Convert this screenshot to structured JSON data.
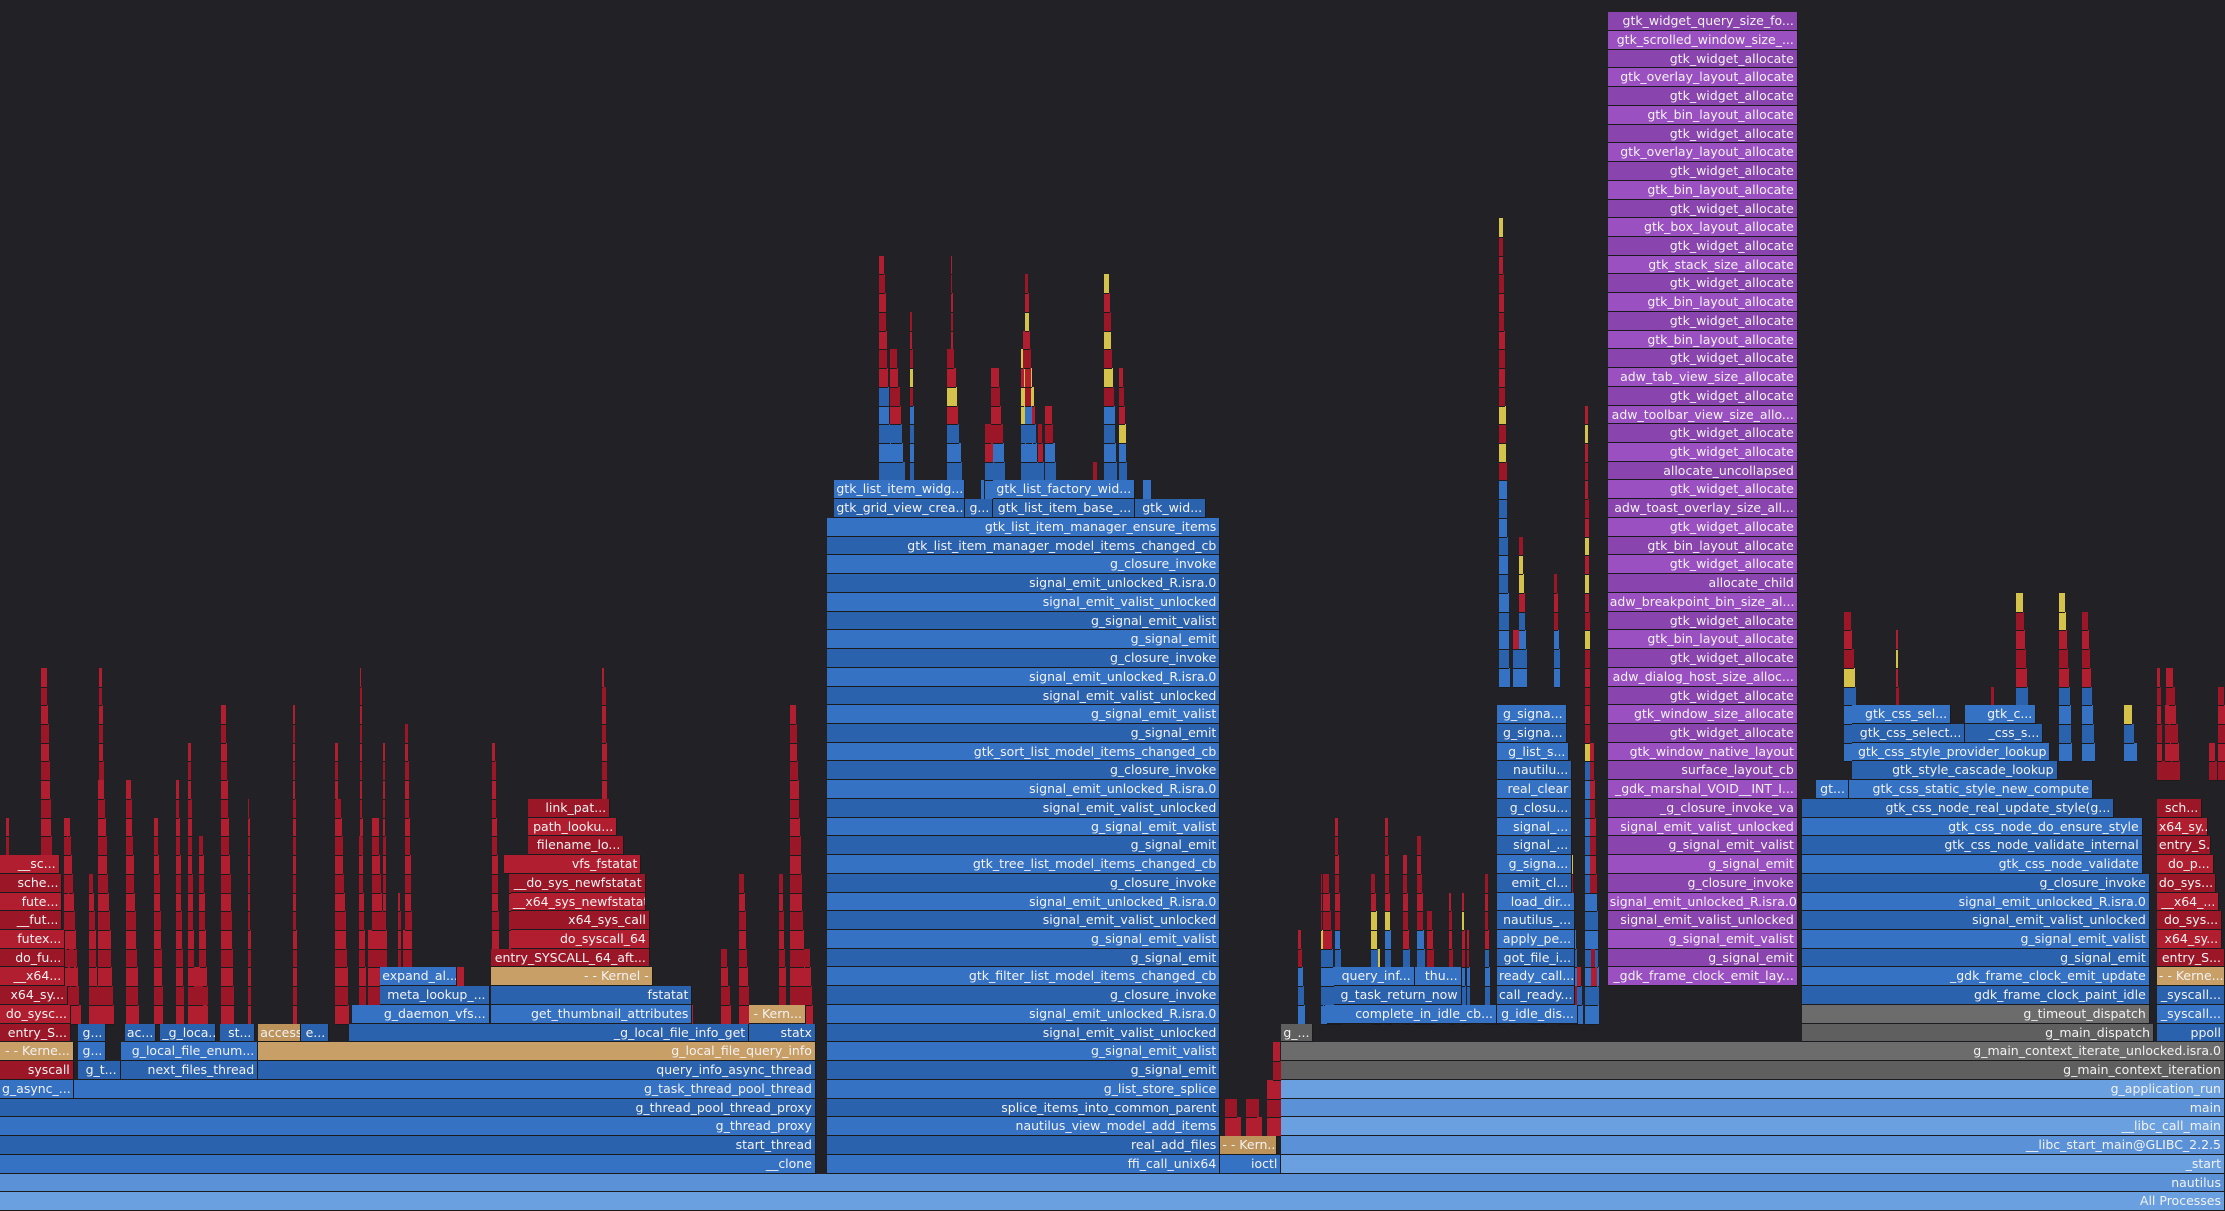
{
  "frames": [
    {
      "label": "All Processes"
    },
    {
      "label": "nautilus"
    },
    {
      "label": "__clone"
    },
    {
      "label": "ffi_call_unix64"
    },
    {
      "label": "ioctl"
    },
    {
      "label": "_start"
    },
    {
      "label": "start_thread"
    },
    {
      "label": "real_add_files"
    },
    {
      "label": "- - Kern..."
    },
    {
      "label": "__libc_start_main@GLIBC_2.2.5"
    },
    {
      "label": "g_thread_proxy"
    },
    {
      "label": "nautilus_view_model_add_items"
    },
    {
      "label": "__libc_call_main"
    },
    {
      "label": "g_thread_pool_thread_proxy"
    },
    {
      "label": "splice_items_into_common_parent"
    },
    {
      "label": "main"
    },
    {
      "label": "g_async_..."
    },
    {
      "label": "g_task_thread_pool_thread"
    },
    {
      "label": "g_list_store_splice"
    },
    {
      "label": "g_application_run"
    },
    {
      "label": "syscall"
    },
    {
      "label": "g_t..."
    },
    {
      "label": "next_files_thread"
    },
    {
      "label": "query_info_async_thread"
    },
    {
      "label": "g_signal_emit"
    },
    {
      "label": "g_main_context_iteration"
    },
    {
      "label": "- - Kerne..."
    },
    {
      "label": "g..."
    },
    {
      "label": "g_local_file_enum..."
    },
    {
      "label": "g_local_file_query_info"
    },
    {
      "label": "g_signal_emit_valist"
    },
    {
      "label": "g_main_context_iterate_unlocked.isra.0"
    },
    {
      "label": "entry_S..."
    },
    {
      "label": "g..."
    },
    {
      "label": "ac..."
    },
    {
      "label": "_g_loca..."
    },
    {
      "label": "st..."
    },
    {
      "label": "access"
    },
    {
      "label": "e..."
    },
    {
      "label": "_g_local_file_info_get"
    },
    {
      "label": "statx"
    },
    {
      "label": "signal_emit_valist_unlocked"
    },
    {
      "label": "g_..."
    },
    {
      "label": "g_main_dispatch"
    },
    {
      "label": "ppoll"
    },
    {
      "label": "do_sysc..."
    },
    {
      "label": "g_daemon_vfs..."
    },
    {
      "label": "get_thumbnail_attributes"
    },
    {
      "label": "- Kern..."
    },
    {
      "label": "signal_emit_unlocked_R.isra.0"
    },
    {
      "label": "complete_in_idle_cb..."
    },
    {
      "label": "g_idle_dis..."
    },
    {
      "label": "g_timeout_dispatch"
    },
    {
      "label": "_syscall..."
    },
    {
      "label": "x64_sy..."
    },
    {
      "label": "meta_lookup_..."
    },
    {
      "label": "fstatat"
    },
    {
      "label": "g_closure_invoke"
    },
    {
      "label": "g_task_return_now"
    },
    {
      "label": "call_ready..."
    },
    {
      "label": "gdk_frame_clock_paint_idle"
    },
    {
      "label": "_syscall..."
    },
    {
      "label": "__x64..."
    },
    {
      "label": "expand_al..."
    },
    {
      "label": "- - Kernel -"
    },
    {
      "label": "gtk_filter_list_model_items_changed_cb"
    },
    {
      "label": "query_inf..."
    },
    {
      "label": "thu..."
    },
    {
      "label": "ready_call..."
    },
    {
      "label": "_gdk_frame_clock_emit_lay..."
    },
    {
      "label": "_gdk_frame_clock_emit_update"
    },
    {
      "label": "- - Kerne..."
    },
    {
      "label": "do_fu..."
    },
    {
      "label": "entry_SYSCALL_64_aft..."
    },
    {
      "label": "g_signal_emit"
    },
    {
      "label": "got_file_i..."
    },
    {
      "label": "g_signal_emit"
    },
    {
      "label": "g_signal_emit"
    },
    {
      "label": "entry_S..."
    },
    {
      "label": "futex..."
    },
    {
      "label": "do_syscall_64"
    },
    {
      "label": "g_signal_emit_valist"
    },
    {
      "label": "apply_pe..."
    },
    {
      "label": "g_signal_emit_valist"
    },
    {
      "label": "g_signal_emit_valist"
    },
    {
      "label": "x64_sy..."
    },
    {
      "label": "__fut..."
    },
    {
      "label": "x64_sys_call"
    },
    {
      "label": "signal_emit_valist_unlocked"
    },
    {
      "label": "nautilus_..."
    },
    {
      "label": "signal_emit_valist_unlocked"
    },
    {
      "label": "signal_emit_valist_unlocked"
    },
    {
      "label": "do_sys..."
    },
    {
      "label": "fute..."
    },
    {
      "label": "__x64_sys_newfstatat"
    },
    {
      "label": "signal_emit_unlocked_R.isra.0"
    },
    {
      "label": "load_dir..."
    },
    {
      "label": "signal_emit_unlocked_R.isra.0"
    },
    {
      "label": "signal_emit_unlocked_R.isra.0"
    },
    {
      "label": "__x64_..."
    },
    {
      "label": "sche..."
    },
    {
      "label": "__do_sys_newfstatat"
    },
    {
      "label": "g_closure_invoke"
    },
    {
      "label": "emit_cl..."
    },
    {
      "label": "g_closure_invoke"
    },
    {
      "label": "g_closure_invoke"
    },
    {
      "label": "do_sys..."
    },
    {
      "label": "__sc..."
    },
    {
      "label": "vfs_fstatat"
    },
    {
      "label": "gtk_tree_list_model_items_changed_cb"
    },
    {
      "label": "g_signa..."
    },
    {
      "label": "g_signal_emit"
    },
    {
      "label": "gtk_css_node_validate"
    },
    {
      "label": "do_p..."
    },
    {
      "label": "filename_lo..."
    },
    {
      "label": "g_signal_emit"
    },
    {
      "label": "signal_..."
    },
    {
      "label": "g_signal_emit_valist"
    },
    {
      "label": "gtk_css_node_validate_internal"
    },
    {
      "label": "entry_S..."
    },
    {
      "label": "path_looku..."
    },
    {
      "label": "g_signal_emit_valist"
    },
    {
      "label": "signal_..."
    },
    {
      "label": "signal_emit_valist_unlocked"
    },
    {
      "label": "gtk_css_node_do_ensure_style"
    },
    {
      "label": "x64_sy..."
    },
    {
      "label": "link_pat..."
    },
    {
      "label": "signal_emit_valist_unlocked"
    },
    {
      "label": "g_closu..."
    },
    {
      "label": "_g_closure_invoke_va"
    },
    {
      "label": "gtk_css_node_real_update_style(g..."
    },
    {
      "label": "sch..."
    },
    {
      "label": "signal_emit_unlocked_R.isra.0"
    },
    {
      "label": "real_clear"
    },
    {
      "label": "_gdk_marshal_VOID__INT_I..."
    },
    {
      "label": "gt..."
    },
    {
      "label": "gtk_css_static_style_new_compute"
    },
    {
      "label": "g_closure_invoke"
    },
    {
      "label": "nautilu..."
    },
    {
      "label": "surface_layout_cb"
    },
    {
      "label": "gtk_style_cascade_lookup"
    },
    {
      "label": "gtk_sort_list_model_items_changed_cb"
    },
    {
      "label": "g_list_s..."
    },
    {
      "label": "gtk_window_native_layout"
    },
    {
      "label": "gtk_css_style_provider_lookup"
    },
    {
      "label": "g_signal_emit"
    },
    {
      "label": "g_signa..."
    },
    {
      "label": "gtk_widget_allocate"
    },
    {
      "label": "gtk_css_select..."
    },
    {
      "label": "_css_s..."
    },
    {
      "label": "g_signal_emit_valist"
    },
    {
      "label": "g_signa..."
    },
    {
      "label": "gtk_window_size_allocate"
    },
    {
      "label": "gtk_css_sel..."
    },
    {
      "label": "gtk_c..."
    },
    {
      "label": "signal_emit_valist_unlocked"
    },
    {
      "label": "gtk_widget_allocate"
    },
    {
      "label": "signal_emit_unlocked_R.isra.0"
    },
    {
      "label": "adw_dialog_host_size_alloc..."
    },
    {
      "label": "g_closure_invoke"
    },
    {
      "label": "gtk_widget_allocate"
    },
    {
      "label": "g_signal_emit"
    },
    {
      "label": "gtk_bin_layout_allocate"
    },
    {
      "label": "g_signal_emit_valist"
    },
    {
      "label": "gtk_widget_allocate"
    },
    {
      "label": "signal_emit_valist_unlocked"
    },
    {
      "label": "adw_breakpoint_bin_size_al..."
    },
    {
      "label": "signal_emit_unlocked_R.isra.0"
    },
    {
      "label": "allocate_child"
    },
    {
      "label": "g_closure_invoke"
    },
    {
      "label": "gtk_widget_allocate"
    },
    {
      "label": "gtk_list_item_manager_model_items_changed_cb"
    },
    {
      "label": "gtk_bin_layout_allocate"
    },
    {
      "label": "gtk_list_item_manager_ensure_items"
    },
    {
      "label": "gtk_widget_allocate"
    },
    {
      "label": "gtk_grid_view_crea..."
    },
    {
      "label": "g..."
    },
    {
      "label": "gtk_list_item_base_..."
    },
    {
      "label": "gtk_wid..."
    },
    {
      "label": "adw_toast_overlay_size_all..."
    },
    {
      "label": "gtk_list_item_widg..."
    },
    {
      "label": "gtk_list_factory_wid..."
    },
    {
      "label": "gtk_widget_allocate"
    },
    {
      "label": "allocate_uncollapsed"
    },
    {
      "label": "gtk_widget_allocate"
    },
    {
      "label": "gtk_widget_allocate"
    },
    {
      "label": "adw_toolbar_view_size_allo..."
    },
    {
      "label": "gtk_widget_allocate"
    },
    {
      "label": "adw_tab_view_size_allocate"
    },
    {
      "label": "gtk_widget_allocate"
    },
    {
      "label": "gtk_bin_layout_allocate"
    },
    {
      "label": "gtk_widget_allocate"
    },
    {
      "label": "gtk_bin_layout_allocate"
    },
    {
      "label": "gtk_widget_allocate"
    },
    {
      "label": "gtk_stack_size_allocate"
    },
    {
      "label": "gtk_widget_allocate"
    },
    {
      "label": "gtk_box_layout_allocate"
    },
    {
      "label": "gtk_widget_allocate"
    },
    {
      "label": "gtk_bin_layout_allocate"
    },
    {
      "label": "gtk_widget_allocate"
    },
    {
      "label": "gtk_overlay_layout_allocate"
    },
    {
      "label": "gtk_widget_allocate"
    },
    {
      "label": "gtk_bin_layout_allocate"
    },
    {
      "label": "gtk_widget_allocate"
    },
    {
      "label": "gtk_overlay_layout_allocate"
    },
    {
      "label": "gtk_widget_allocate"
    },
    {
      "label": "gtk_scrolled_window_size_..."
    },
    {
      "label": "gtk_widget_query_size_fo..."
    }
  ]
}
